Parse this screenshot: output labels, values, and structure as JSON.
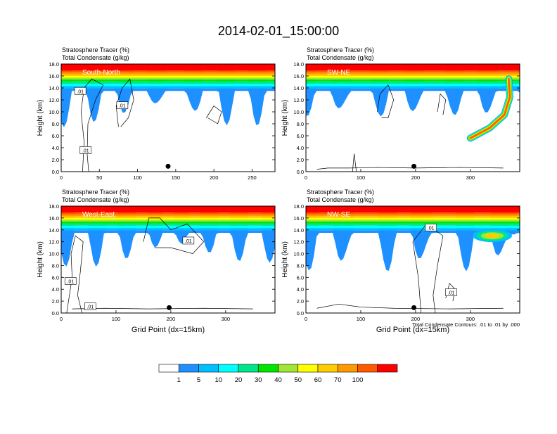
{
  "title": "2014-02-01_15:00:00",
  "chart_data": [
    {
      "type": "heatmap",
      "subtitle_1": "Stratosphere Tracer   (%)",
      "subtitle_2": "Total Condensate   (g/kg)",
      "panel_label": "South-North",
      "ylabel": "Height (km)",
      "xlabel": "",
      "xlim": [
        0,
        280
      ],
      "ylim": [
        0,
        18
      ],
      "x_ticks": [
        "0",
        "50",
        "100",
        "150",
        "200",
        "250"
      ],
      "x_tick_values": [
        0,
        50,
        100,
        150,
        200,
        250
      ],
      "y_ticks": [
        "0.0",
        "2.0",
        "4.0",
        "6.0",
        "8.0",
        "10.0",
        "12.0",
        "14.0",
        "16.0",
        "18.0"
      ],
      "marker_x": 140,
      "contour_labels": [
        ".01",
        ".01",
        ".01"
      ],
      "contour_label_positions": [
        [
          25,
          13.5
        ],
        [
          80,
          11.1
        ],
        [
          32,
          3.6
        ]
      ]
    },
    {
      "type": "heatmap",
      "subtitle_1": "Stratosphere Tracer   (%)",
      "subtitle_2": "Total Condensate   (g/kg)",
      "panel_label": "SW-NE",
      "ylabel": "Height (km)",
      "xlabel": "",
      "xlim": [
        0,
        390
      ],
      "ylim": [
        0,
        18
      ],
      "x_ticks": [
        "0",
        "100",
        "200",
        "300"
      ],
      "x_tick_values": [
        0,
        100,
        200,
        300
      ],
      "y_ticks": [
        "0.0",
        "2.0",
        "4.0",
        "6.0",
        "8.0",
        "10.0",
        "12.0",
        "14.0",
        "16.0",
        "18.0"
      ],
      "marker_x": 197,
      "contour_labels": [],
      "contour_label_positions": []
    },
    {
      "type": "heatmap",
      "subtitle_1": "Stratosphere Tracer   (%)",
      "subtitle_2": "Total Condensate   (g/kg)",
      "panel_label": "West-East",
      "ylabel": "Height (km)",
      "xlabel": "Grid Point (dx=15km)",
      "xlim": [
        0,
        390
      ],
      "ylim": [
        0,
        18
      ],
      "x_ticks": [
        "0",
        "100",
        "200",
        "300"
      ],
      "x_tick_values": [
        0,
        100,
        200,
        300
      ],
      "y_ticks": [
        "0.0",
        "2.0",
        "4.0",
        "6.0",
        "8.0",
        "10.0",
        "12.0",
        "14.0",
        "16.0",
        "18.0"
      ],
      "marker_x": 197,
      "contour_labels": [
        ".01",
        ".01",
        ".01"
      ],
      "contour_label_positions": [
        [
          232,
          12.2
        ],
        [
          17,
          5.4
        ],
        [
          53,
          1.1
        ]
      ]
    },
    {
      "type": "heatmap",
      "subtitle_1": "Stratosphere Tracer   (%)",
      "subtitle_2": "Total Condensate   (g/kg)",
      "panel_label": "NW-SE",
      "ylabel": "Height (km)",
      "xlabel": "Grid Point (dx=15km)",
      "footnote": "Total Condensate Contours: .01 to .01 by .000",
      "xlim": [
        0,
        390
      ],
      "ylim": [
        0,
        18
      ],
      "x_ticks": [
        "0",
        "100",
        "200",
        "300"
      ],
      "x_tick_values": [
        0,
        100,
        200,
        300
      ],
      "y_ticks": [
        "0.0",
        "2.0",
        "4.0",
        "6.0",
        "8.0",
        "10.0",
        "12.0",
        "14.0",
        "16.0",
        "18.0"
      ],
      "marker_x": 197,
      "contour_labels": [
        ".01",
        ".01"
      ],
      "contour_label_positions": [
        [
          228,
          14.4
        ],
        [
          265,
          3.5
        ]
      ]
    }
  ],
  "colorbar": {
    "labels": [
      "1",
      "5",
      "10",
      "20",
      "30",
      "40",
      "50",
      "60",
      "70",
      "100"
    ],
    "colors": [
      "#ffffff",
      "#1e90ff",
      "#00bfff",
      "#00ffff",
      "#00e68a",
      "#00e600",
      "#a0e632",
      "#ffff00",
      "#ffcc00",
      "#ff9900",
      "#ff5a00",
      "#ff0000"
    ]
  }
}
